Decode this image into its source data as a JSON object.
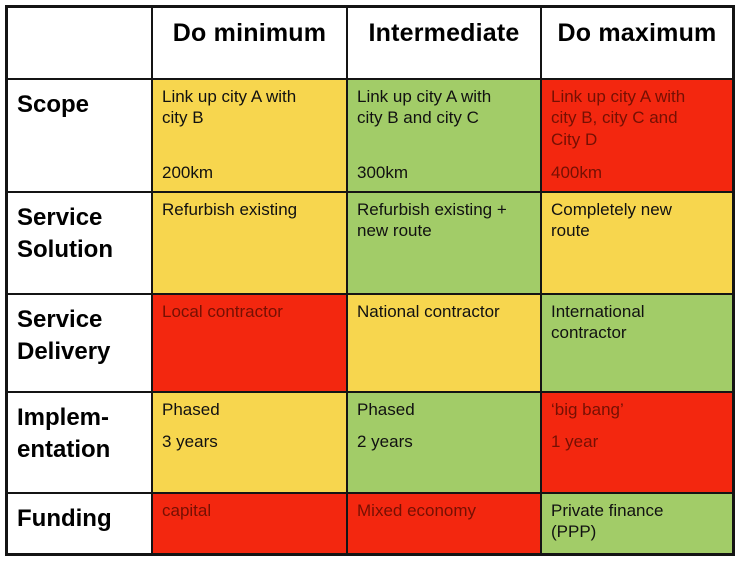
{
  "colors": {
    "yellow": "#F7D64E",
    "green": "#A2CC68",
    "red": "#F3270F",
    "red_cell_text": "#751003",
    "border": "#141414",
    "label_text": "#000000"
  },
  "table": {
    "columns": [
      "",
      "Do minimum",
      "Intermediate",
      "Do maximum"
    ],
    "rows": [
      {
        "label": "Scope",
        "cells": [
          {
            "text": "Link up city A with\ncity B",
            "sub": "200km",
            "color": "yellow"
          },
          {
            "text": "Link up city A with\ncity B and city C",
            "sub": "300km",
            "color": "green"
          },
          {
            "text": "Link up city A with\ncity B, city C and\nCity D",
            "sub": "400km",
            "color": "red"
          }
        ]
      },
      {
        "label": "Service\nSolution",
        "cells": [
          {
            "text": "Refurbish existing",
            "color": "yellow"
          },
          {
            "text": "Refurbish existing +\nnew route",
            "color": "green"
          },
          {
            "text": "Completely new\nroute",
            "color": "yellow"
          }
        ]
      },
      {
        "label": "Service\nDelivery",
        "cells": [
          {
            "text": "Local contractor",
            "color": "red"
          },
          {
            "text": "National contractor",
            "color": "yellow"
          },
          {
            "text": "International\ncontractor",
            "color": "green"
          }
        ]
      },
      {
        "label": "Implem-\nentation",
        "cells": [
          {
            "text": "Phased",
            "sub": "3 years",
            "color": "yellow"
          },
          {
            "text": "Phased",
            "sub": "2 years",
            "color": "green"
          },
          {
            "text": "‘big bang’",
            "sub": "1 year",
            "color": "red"
          }
        ]
      },
      {
        "label": "Funding",
        "cells": [
          {
            "text": "capital",
            "color": "red"
          },
          {
            "text": "Mixed economy",
            "color": "red"
          },
          {
            "text": "Private finance\n(PPP)",
            "color": "green"
          }
        ]
      }
    ]
  },
  "chart_data": {
    "type": "table",
    "columns": [
      "",
      "Do minimum",
      "Intermediate",
      "Do maximum"
    ],
    "rows": [
      {
        "category": "Scope",
        "values": [
          "Link up city A with city B — 200km",
          "Link up city A with city B and city C — 300km",
          "Link up city A with city B, city C and City D — 400km"
        ],
        "ratings": [
          "yellow",
          "green",
          "red"
        ]
      },
      {
        "category": "Service Solution",
        "values": [
          "Refurbish existing",
          "Refurbish existing + new route",
          "Completely new route"
        ],
        "ratings": [
          "yellow",
          "green",
          "yellow"
        ]
      },
      {
        "category": "Service Delivery",
        "values": [
          "Local contractor",
          "National contractor",
          "International contractor"
        ],
        "ratings": [
          "red",
          "yellow",
          "green"
        ]
      },
      {
        "category": "Implementation",
        "values": [
          "Phased — 3 years",
          "Phased — 2 years",
          "‘big bang’ — 1 year"
        ],
        "ratings": [
          "yellow",
          "green",
          "red"
        ]
      },
      {
        "category": "Funding",
        "values": [
          "capital",
          "Mixed economy",
          "Private finance (PPP)"
        ],
        "ratings": [
          "red",
          "red",
          "green"
        ]
      }
    ],
    "legend_note": "cell color encodes rating: green / yellow / red",
    "grid": true
  }
}
